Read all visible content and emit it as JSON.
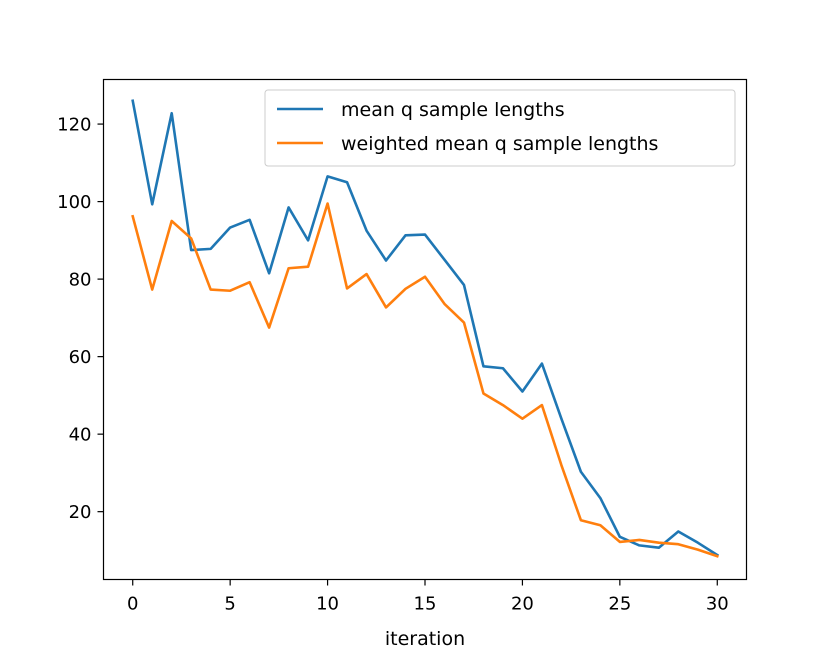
{
  "chart_data": {
    "type": "line",
    "title": "",
    "xlabel": "iteration",
    "ylabel": "",
    "xlim": [
      -1.5,
      31.5
    ],
    "ylim": [
      2.5,
      131.5
    ],
    "xticks": [
      0,
      5,
      10,
      15,
      20,
      25,
      30
    ],
    "yticks": [
      20,
      40,
      60,
      80,
      100,
      120
    ],
    "xtick_labels": [
      "0",
      "5",
      "10",
      "15",
      "20",
      "25",
      "30"
    ],
    "ytick_labels": [
      "20",
      "40",
      "60",
      "80",
      "100",
      "120"
    ],
    "grid": false,
    "legend_position": "upper right",
    "x": [
      0,
      1,
      2,
      3,
      4,
      5,
      6,
      7,
      8,
      9,
      10,
      11,
      12,
      13,
      14,
      15,
      16,
      17,
      18,
      19,
      20,
      21,
      22,
      23,
      24,
      25,
      26,
      27,
      28,
      29,
      30
    ],
    "series": [
      {
        "name": "mean q sample lengths",
        "color": "#1f77b4",
        "values": [
          126.0,
          99.3,
          122.8,
          87.5,
          87.8,
          93.3,
          95.3,
          81.5,
          98.5,
          90.0,
          106.5,
          105.0,
          92.5,
          84.8,
          91.3,
          91.5,
          85.0,
          78.5,
          57.5,
          57.0,
          51.0,
          58.2,
          44.0,
          30.3,
          23.5,
          13.5,
          11.3,
          10.7,
          14.9,
          12.0,
          8.8
        ]
      },
      {
        "name": "weighted mean q sample lengths",
        "color": "#ff7f0e",
        "values": [
          96.2,
          77.3,
          95.0,
          90.5,
          77.3,
          77.0,
          79.2,
          67.5,
          82.8,
          83.2,
          99.5,
          77.6,
          81.3,
          72.7,
          77.5,
          80.6,
          73.6,
          68.8,
          50.5,
          47.5,
          44.0,
          47.5,
          32.0,
          17.8,
          16.5,
          12.2,
          12.7,
          12.0,
          11.6,
          10.2,
          8.5
        ]
      }
    ]
  }
}
